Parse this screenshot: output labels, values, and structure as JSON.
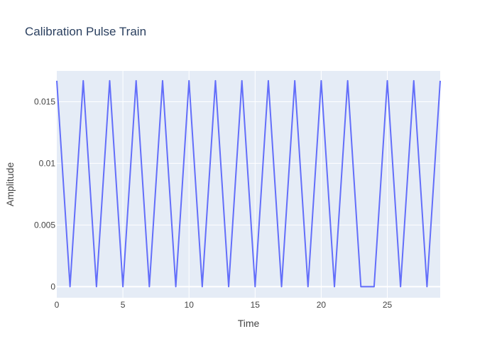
{
  "chart_data": {
    "type": "line",
    "title": "Calibration Pulse Train",
    "xlabel": "Time",
    "ylabel": "Amplitude",
    "xlim": [
      0,
      29
    ],
    "ylim": [
      -0.0009,
      0.0175
    ],
    "x_ticks": [
      0,
      5,
      10,
      15,
      20,
      25
    ],
    "x_tick_labels": [
      "0",
      "5",
      "10",
      "15",
      "20",
      "25"
    ],
    "y_ticks": [
      0,
      0.005,
      0.01,
      0.015
    ],
    "y_tick_labels": [
      "0",
      "0.005",
      "0.01",
      "0.015"
    ],
    "grid": true,
    "legend": "none",
    "colors": {
      "line": "#636efa",
      "plot_background": "#e5ecf6",
      "grid": "#ffffff",
      "text": "#444444",
      "title": "#2a3f5f"
    },
    "series": [
      {
        "x": [
          0,
          1,
          2,
          3,
          4,
          5,
          6,
          7,
          8,
          9,
          10,
          11,
          12,
          13,
          14,
          15,
          16,
          17,
          18,
          19,
          20,
          21,
          22,
          23,
          24,
          25,
          26,
          27,
          28,
          29
        ],
        "values": [
          0.0167,
          0,
          0.0167,
          0,
          0.0167,
          0,
          0.0167,
          0,
          0.0167,
          0,
          0.0167,
          0,
          0.0167,
          0,
          0.0167,
          0,
          0.0167,
          0,
          0.0167,
          0,
          0.0167,
          0,
          0.0167,
          0,
          0,
          0.0167,
          0,
          0.0167,
          0,
          0.0167
        ]
      }
    ]
  }
}
